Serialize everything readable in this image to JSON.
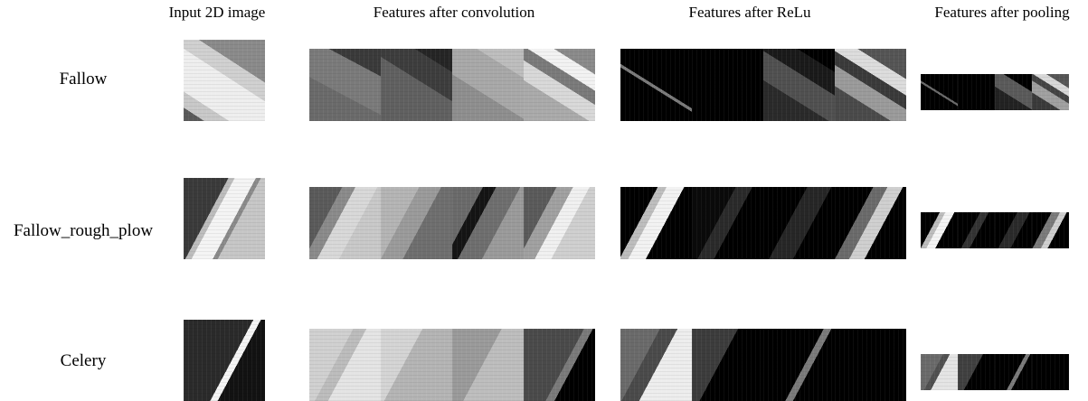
{
  "columns": [
    "Input 2D image",
    "Features after convolution",
    "Features after ReLu",
    "Features after pooling"
  ],
  "rows": [
    {
      "label": "Fallow",
      "input": "linear-gradient(33deg, #5a5a5a 0 10%, #c8c8c8 10% 22%, #eeeeee 22% 54%, #d0d0d0 54% 68%, #8a8a8a 68% 100%)",
      "conv": [
        "linear-gradient(28deg, #6a6a6a 0 40%, #7a7a7a 40% 75%, #3a3a3a 75% 100%)",
        "linear-gradient(32deg, #606060 0 55%, #3d3d3d 55% 80%, #252525 80% 100%)",
        "linear-gradient(32deg, #8e8e8e 0 40%, #a8a8a8 40% 75%, #bdbdbd 75% 100%)",
        "linear-gradient(32deg, #aaaaaa 0 35%, #d8d8d8 35% 52%, #7a7a7a 52% 64%, #f2f2f2 64% 78%, #8a8a8a 78% 100%)"
      ],
      "relu": [
        "linear-gradient(32deg, #000 0 46%, #7a7a7a 46% 49%, #000 49% 100%)",
        "linear-gradient(32deg, #000 0 100%)",
        "linear-gradient(32deg, #2a2a2a 0 35%, #505050 35% 60%, #1a1a1a 60% 80%, #000 80% 100%)",
        "linear-gradient(32deg, #4a4a4a 0 30%, #9a9a9a 30% 48%, #3a3a3a 48% 60%, #dcdcdc 60% 74%, #555 74% 100%)"
      ],
      "pool": [
        "linear-gradient(32deg, #000 0 46%, #6a6a6a 46% 50%, #000 50% 100%)",
        "linear-gradient(32deg, #000 0 100%)",
        "linear-gradient(32deg, #222 0 40%, #5a5a5a 40% 70%, #000 70% 100%)",
        "linear-gradient(32deg, #3a3a3a 0 30%, #a0a0a0 30% 50%, #444 50% 62%, #d8d8d8 62% 76%, #555 76% 100%)"
      ]
    },
    {
      "label": "Fallow_rough_plow",
      "input": "linear-gradient(118deg, #3a3a3a 0 36%, #bdbdbd 36% 41%, #f4f4f4 41% 58%, #8a8a8a 58% 62%, #c6c6c6 62% 100%)",
      "conv": [
        "linear-gradient(118deg, #5a5a5a 0 30%, #8a8a8a 30% 42%, #d8d8d8 42% 62%, #c8c8c8 62% 100%)",
        "linear-gradient(118deg, #b4b4b4 0 35%, #9a9a9a 35% 55%, #6e6e6e 55% 100%)",
        "linear-gradient(118deg, #6a6a6a 0 28%, #141414 28% 40%, #6e6e6e 40% 62%, #9a9a9a 62% 100%)",
        "linear-gradient(118deg, #5a5a5a 0 30%, #a0a0a0 30% 45%, #f0f0f0 45% 60%, #cfcfcf 60% 100%)"
      ],
      "relu": [
        "linear-gradient(118deg, #000 0 34%, #bdbdbd 34% 42%, #f2f2f2 42% 58%, #000 58% 100%)",
        "linear-gradient(118deg, #0a0a0a 0 40%, #2a2a2a 40% 55%, #000 55% 100%)",
        "linear-gradient(118deg, #000 0 40%, #262626 40% 62%, #000 62% 100%)",
        "linear-gradient(118deg, #000 0 35%, #6a6a6a 35% 48%, #cfcfcf 48% 62%, #000 62% 100%)"
      ],
      "pool": [
        "linear-gradient(118deg, #000 0 34%, #bdbdbd 34% 44%, #f4f4f4 44% 60%, #000 60% 100%)",
        "linear-gradient(118deg, #000 0 40%, #333 40% 55%, #000 55% 100%)",
        "linear-gradient(118deg, #000 0 40%, #2a2a2a 40% 62%, #000 62% 100%)",
        "linear-gradient(118deg, #000 0 35%, #7a7a7a 35% 50%, #cfcfcf 50% 62%, #000 62% 100%)"
      ]
    },
    {
      "label": "Celery",
      "input": "linear-gradient(118deg, #2a2a2a 0 56%, #f4f4f4 56% 62%, #121212 62% 100%)",
      "conv": [
        "linear-gradient(118deg, #d0d0d0 0 40%, #bcbcbc 40% 52%, #e4e4e4 52% 100%)",
        "linear-gradient(118deg, #d4d4d4 0 38%, #b4b4b4 38% 100%)",
        "linear-gradient(118deg, #9a9a9a 0 45%, #bdbdbd 45% 100%)",
        "linear-gradient(118deg, #4a4a4a 0 55%, #7a7a7a 55% 63%, #000 63% 100%)"
      ],
      "relu": [
        "linear-gradient(118deg, #6a6a6a 0 36%, #4a4a4a 36% 52%, #ededed 52% 100%)",
        "linear-gradient(118deg, #3c3c3c 0 42%, #000 42% 100%)",
        "linear-gradient(118deg, #000 0 55%, #7a7a7a 55% 62%, #000 62% 100%)",
        "linear-gradient(118deg, #000 0 100%)"
      ],
      "pool": [
        "linear-gradient(118deg, #6a6a6a 0 40%, #505050 40% 52%, #e4e4e4 52% 100%)",
        "linear-gradient(118deg, #404040 0 45%, #000 45% 100%)",
        "linear-gradient(118deg, #000 0 55%, #7a7a7a 55% 63%, #000 63% 100%)",
        "linear-gradient(118deg, #000 0 100%)"
      ]
    }
  ]
}
